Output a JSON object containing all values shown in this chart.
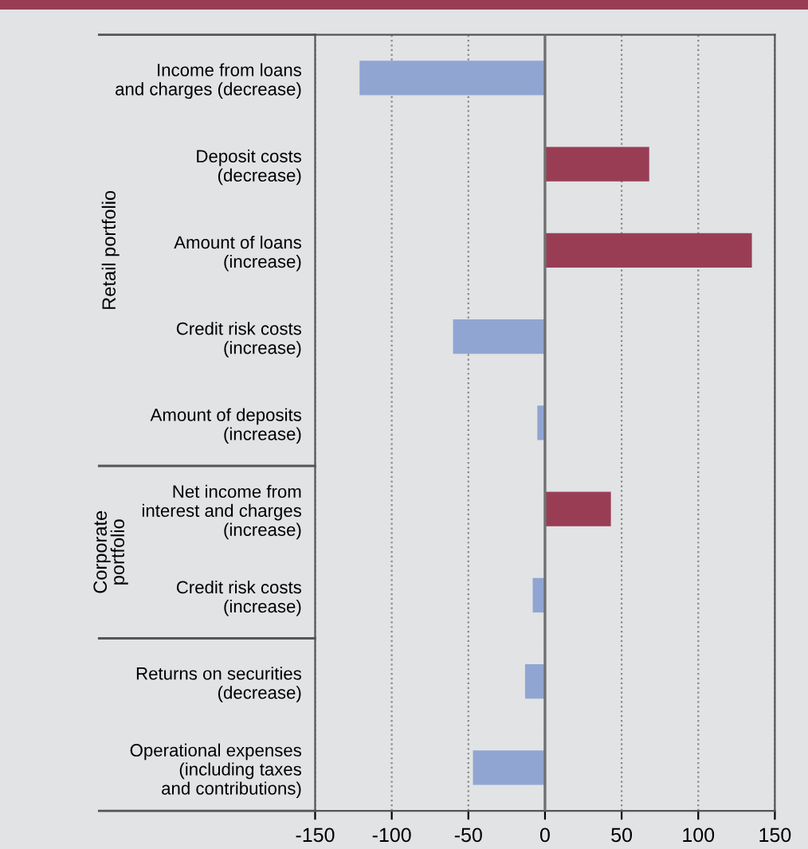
{
  "chart_data": {
    "type": "bar",
    "orientation": "horizontal",
    "categories": [
      "Income from loans\nand charges (decrease)",
      "Deposit costs\n(decrease)",
      "Amount of loans\n(increase)",
      "Credit risk costs\n(increase)",
      "Amount of deposits\n(increase)",
      "Net income from\ninterest and charges\n(increase)",
      "Credit risk costs\n(increase)",
      "Returns on securities\n(decrease)",
      "Operational expenses\n(including taxes\nand contributions)"
    ],
    "values": [
      -121,
      68,
      135,
      -60,
      -5,
      43,
      -8,
      -13,
      -47
    ],
    "colors": [
      "#91a5d2",
      "#993d55",
      "#993d55",
      "#91a5d2",
      "#91a5d2",
      "#993d55",
      "#91a5d2",
      "#91a5d2",
      "#91a5d2"
    ],
    "xlim": [
      -150,
      150
    ],
    "xticks": [
      -150,
      -100,
      -50,
      0,
      50,
      100,
      150
    ],
    "grid": "x",
    "legend": false,
    "ref_lines": [
      {
        "axis": "x",
        "value": 0
      }
    ],
    "annotations": [
      "Retail portfolio",
      "Corporate\nportfolio"
    ]
  }
}
